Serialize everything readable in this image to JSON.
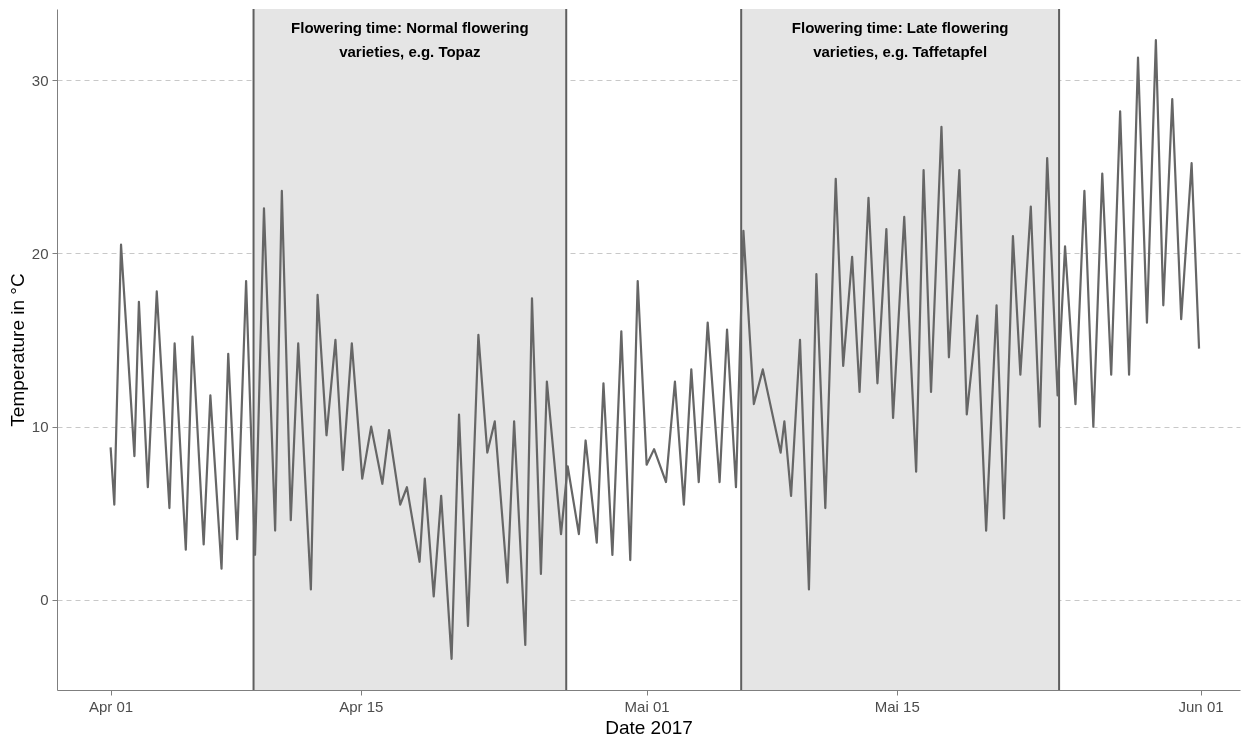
{
  "chart_data": {
    "type": "line",
    "xlabel": "Date 2017",
    "ylabel": "Temperature in °C",
    "xlim": [
      "2017-03-29T00:00",
      "2017-06-03T05:00"
    ],
    "ylim": [
      -5.2,
      34.1
    ],
    "xticks": [
      {
        "value": "2017-04-01T00:00",
        "label": "Apr 01"
      },
      {
        "value": "2017-04-15T00:00",
        "label": "Apr 15"
      },
      {
        "value": "2017-05-01T00:00",
        "label": "Mai 01"
      },
      {
        "value": "2017-05-15T00:00",
        "label": "Mai 15"
      },
      {
        "value": "2017-06-01T00:00",
        "label": "Jun 01"
      }
    ],
    "yticks": [
      0,
      10,
      20,
      30
    ],
    "grid": "y",
    "bands": [
      {
        "axis": "x",
        "from": "2017-04-09T00:00",
        "to": "2017-04-26T12:00",
        "label": "Flowering time: Normal flowering\nvarieties, e.g. Topaz",
        "color": "#e5e5e5"
      },
      {
        "axis": "x",
        "from": "2017-05-06T07:00",
        "to": "2017-05-24T02:00",
        "label": "Flowering time: Late flowering\nvarieties, e.g. Taffetapfel",
        "color": "#e5e5e5"
      }
    ],
    "ref_lines": [
      {
        "axis": "x",
        "value": "2017-04-09T00:00",
        "color": "#5f5f5f"
      },
      {
        "axis": "x",
        "value": "2017-04-26T12:00",
        "color": "#5f5f5f"
      },
      {
        "axis": "x",
        "value": "2017-05-06T07:00",
        "color": "#5f5f5f"
      },
      {
        "axis": "x",
        "value": "2017-05-24T02:00",
        "color": "#5f5f5f"
      }
    ],
    "series": [
      {
        "color": "#666666",
        "x": [
          "2017-04-01T00:00",
          "2017-04-01T05:00",
          "2017-04-01T14:00",
          "2017-04-02T08:00",
          "2017-04-02T14:00",
          "2017-04-03T02:00",
          "2017-04-03T14:00",
          "2017-04-04T07:00",
          "2017-04-04T14:00",
          "2017-04-05T05:00",
          "2017-04-05T14:00",
          "2017-04-06T05:00",
          "2017-04-06T14:00",
          "2017-04-07T05:00",
          "2017-04-07T14:00",
          "2017-04-08T02:00",
          "2017-04-08T14:00",
          "2017-04-09T02:00",
          "2017-04-09T14:00",
          "2017-04-10T05:00",
          "2017-04-10T14:00",
          "2017-04-11T02:00",
          "2017-04-11T12:00",
          "2017-04-12T05:00",
          "2017-04-12T14:00",
          "2017-04-13T02:00",
          "2017-04-13T14:00",
          "2017-04-14T00:00",
          "2017-04-14T12:00",
          "2017-04-15T02:00",
          "2017-04-15T14:00",
          "2017-04-16T05:00",
          "2017-04-16T14:00",
          "2017-04-17T05:00",
          "2017-04-17T14:00",
          "2017-04-18T07:00",
          "2017-04-18T14:00",
          "2017-04-19T02:00",
          "2017-04-19T12:00",
          "2017-04-20T02:00",
          "2017-04-20T12:00",
          "2017-04-21T00:00",
          "2017-04-21T14:00",
          "2017-04-22T02:00",
          "2017-04-22T12:00",
          "2017-04-23T05:00",
          "2017-04-23T14:00",
          "2017-04-24T05:00",
          "2017-04-24T14:00",
          "2017-04-25T02:00",
          "2017-04-25T10:00",
          "2017-04-26T05:00",
          "2017-04-26T14:00",
          "2017-04-27T05:00",
          "2017-04-27T14:00",
          "2017-04-28T05:00",
          "2017-04-28T14:00",
          "2017-04-29T02:00",
          "2017-04-29T14:00",
          "2017-04-30T02:00",
          "2017-04-30T12:00",
          "2017-05-01T00:00",
          "2017-05-01T10:00",
          "2017-05-02T02:00",
          "2017-05-02T14:00",
          "2017-05-03T02:00",
          "2017-05-03T12:00",
          "2017-05-03T22:00",
          "2017-05-04T10:00",
          "2017-05-05T02:00",
          "2017-05-05T12:00",
          "2017-05-06T00:00",
          "2017-05-06T10:00",
          "2017-05-07T00:00",
          "2017-05-07T12:00",
          "2017-05-08T12:00",
          "2017-05-08T17:00",
          "2017-05-09T02:00",
          "2017-05-09T14:00",
          "2017-05-10T02:00",
          "2017-05-10T12:00",
          "2017-05-11T00:00",
          "2017-05-11T14:00",
          "2017-05-12T00:00",
          "2017-05-12T12:00",
          "2017-05-12T22:00",
          "2017-05-13T10:00",
          "2017-05-13T22:00",
          "2017-05-14T10:00",
          "2017-05-14T19:00",
          "2017-05-15T10:00",
          "2017-05-16T02:00",
          "2017-05-16T12:00",
          "2017-05-16T22:00",
          "2017-05-17T12:00",
          "2017-05-17T22:00",
          "2017-05-18T12:00",
          "2017-05-18T22:00",
          "2017-05-19T12:00",
          "2017-05-20T00:00",
          "2017-05-20T14:00",
          "2017-05-21T00:00",
          "2017-05-21T12:00",
          "2017-05-21T22:00",
          "2017-05-22T12:00",
          "2017-05-23T00:00",
          "2017-05-23T10:00",
          "2017-05-24T00:00",
          "2017-05-24T10:00",
          "2017-05-25T00:00",
          "2017-05-25T12:00",
          "2017-05-26T00:00",
          "2017-05-26T12:00",
          "2017-05-27T00:00",
          "2017-05-27T12:00",
          "2017-05-28T00:00",
          "2017-05-28T12:00",
          "2017-05-29T00:00",
          "2017-05-29T12:00",
          "2017-05-29T22:00",
          "2017-05-30T10:00",
          "2017-05-30T22:00",
          "2017-05-31T12:00",
          "2017-05-31T22:00"
        ],
        "values": [
          8.8,
          5.5,
          20.5,
          8.3,
          17.2,
          6.5,
          17.8,
          5.3,
          14.8,
          2.9,
          15.2,
          3.2,
          11.8,
          1.8,
          14.2,
          3.5,
          18.4,
          2.6,
          22.6,
          4.0,
          23.6,
          4.6,
          14.8,
          0.6,
          17.6,
          9.5,
          15.0,
          7.5,
          14.8,
          7.0,
          10.0,
          6.7,
          9.8,
          5.5,
          6.5,
          2.2,
          7.0,
          0.2,
          6.0,
          -3.4,
          10.7,
          -1.5,
          15.3,
          8.5,
          10.3,
          1.0,
          10.3,
          -2.6,
          17.4,
          1.5,
          12.6,
          3.8,
          7.7,
          3.8,
          9.2,
          3.3,
          12.5,
          2.6,
          15.5,
          2.3,
          18.4,
          7.8,
          8.7,
          6.8,
          12.6,
          5.5,
          13.3,
          6.8,
          16.0,
          6.8,
          15.6,
          6.5,
          21.3,
          11.3,
          13.3,
          8.5,
          10.3,
          6.0,
          15.0,
          0.6,
          18.8,
          5.3,
          24.3,
          13.5,
          19.8,
          12.0,
          23.2,
          12.5,
          21.4,
          10.5,
          22.1,
          7.4,
          24.8,
          12.0,
          27.3,
          14.0,
          24.8,
          10.7,
          16.4,
          4.0,
          17.0,
          4.7,
          21.0,
          13.0,
          22.7,
          10.0,
          25.5,
          11.8,
          20.4,
          11.3,
          23.6,
          10.0,
          24.6,
          13.0,
          28.2,
          13.0,
          31.3,
          16.0,
          32.3,
          17.0,
          28.9,
          16.2,
          25.2,
          14.5
        ]
      }
    ]
  }
}
